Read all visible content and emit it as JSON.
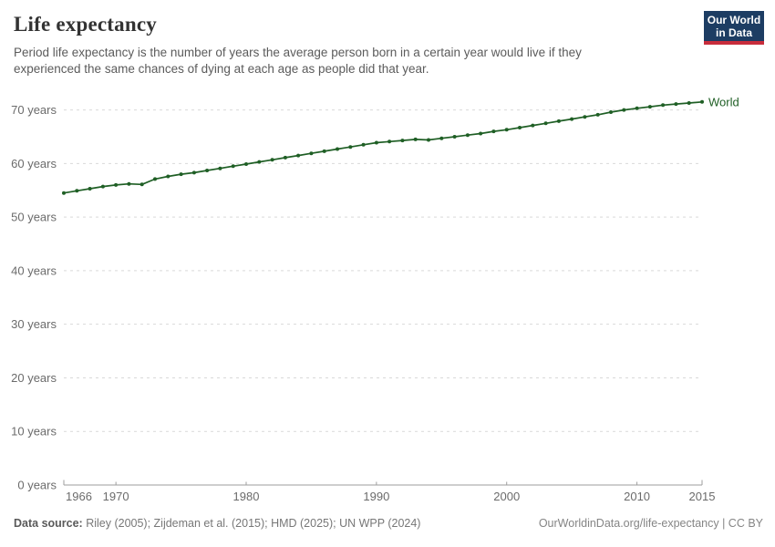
{
  "header": {
    "title": "Life expectancy",
    "subtitle": "Period life expectancy is the number of years the average person born in a certain year would live if they experienced the same chances of dying at each age as people did that year.",
    "logo": {
      "line1": "Our World",
      "line2": "in Data",
      "bg_color": "#1d3d63",
      "bar_color": "#c82d3c"
    }
  },
  "chart_data": {
    "type": "line",
    "title": "Life expectancy",
    "x": [
      1966,
      1967,
      1968,
      1969,
      1970,
      1971,
      1972,
      1973,
      1974,
      1975,
      1976,
      1977,
      1978,
      1979,
      1980,
      1981,
      1982,
      1983,
      1984,
      1985,
      1986,
      1987,
      1988,
      1989,
      1990,
      1991,
      1992,
      1993,
      1994,
      1995,
      1996,
      1997,
      1998,
      1999,
      2000,
      2001,
      2002,
      2003,
      2004,
      2005,
      2006,
      2007,
      2008,
      2009,
      2010,
      2011,
      2012,
      2013,
      2014,
      2015
    ],
    "series": [
      {
        "name": "World",
        "color": "#1f5f25",
        "values": [
          54.5,
          54.9,
          55.3,
          55.7,
          56.0,
          56.2,
          56.1,
          57.1,
          57.6,
          58.0,
          58.3,
          58.7,
          59.1,
          59.5,
          59.9,
          60.3,
          60.7,
          61.1,
          61.5,
          61.9,
          62.3,
          62.7,
          63.1,
          63.5,
          63.9,
          64.1,
          64.3,
          64.5,
          64.4,
          64.7,
          65.0,
          65.3,
          65.6,
          66.0,
          66.3,
          66.7,
          67.1,
          67.5,
          67.9,
          68.3,
          68.7,
          69.1,
          69.6,
          70.0,
          70.3,
          70.6,
          70.9,
          71.1,
          71.3,
          71.5
        ]
      }
    ],
    "xlabel": "",
    "ylabel": "",
    "xlim": [
      1966,
      2015
    ],
    "ylim": [
      0,
      70
    ],
    "x_ticks": [
      1966,
      1970,
      1980,
      1990,
      2000,
      2010,
      2015
    ],
    "y_ticks": [
      0,
      10,
      20,
      30,
      40,
      50,
      60,
      70
    ],
    "y_tick_format": "{v} years",
    "grid": "horizontal-dashed",
    "legend": "end-of-line-label",
    "style": {
      "grid_color": "#d9d9d9",
      "axis_color": "#9e9e9e",
      "tick_label_color": "#6b6b6b",
      "marker_radius": 2,
      "line_width": 1.7
    }
  },
  "footer": {
    "source_label": "Data source:",
    "source_text": " Riley (2005); Zijdeman et al. (2015); HMD (2025); UN WPP (2024)",
    "link": "OurWorldinData.org/life-expectancy | CC BY"
  }
}
